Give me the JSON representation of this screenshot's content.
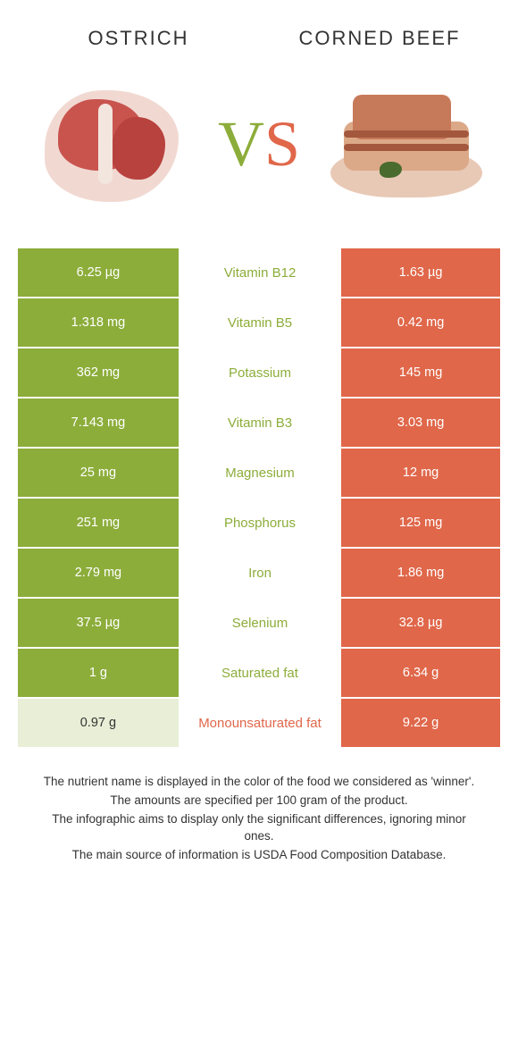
{
  "colors": {
    "green": "#8cad3a",
    "orange": "#e0674a",
    "green_light": "#e9efd7",
    "green_row": "#8cad3a",
    "white": "#ffffff",
    "text": "#333333"
  },
  "header": {
    "left_title": "OSTRICH",
    "right_title": "CORNED BEEF",
    "vs_v": "V",
    "vs_s": "S"
  },
  "table": {
    "rows": [
      {
        "left": "6.25 µg",
        "label": "Vitamin B12",
        "right": "1.63 µg",
        "winner": "left"
      },
      {
        "left": "1.318 mg",
        "label": "Vitamin B5",
        "right": "0.42 mg",
        "winner": "left"
      },
      {
        "left": "362 mg",
        "label": "Potassium",
        "right": "145 mg",
        "winner": "left"
      },
      {
        "left": "7.143 mg",
        "label": "Vitamin B3",
        "right": "3.03 mg",
        "winner": "left"
      },
      {
        "left": "25 mg",
        "label": "Magnesium",
        "right": "12 mg",
        "winner": "left"
      },
      {
        "left": "251 mg",
        "label": "Phosphorus",
        "right": "125 mg",
        "winner": "left"
      },
      {
        "left": "2.79 mg",
        "label": "Iron",
        "right": "1.86 mg",
        "winner": "left"
      },
      {
        "left": "37.5 µg",
        "label": "Selenium",
        "right": "32.8 µg",
        "winner": "left"
      },
      {
        "left": "1 g",
        "label": "Saturated fat",
        "right": "6.34 g",
        "winner": "left"
      },
      {
        "left": "0.97 g",
        "label": "Monounsaturated fat",
        "right": "9.22 g",
        "winner": "right"
      }
    ]
  },
  "footer": {
    "lines": [
      "The nutrient name is displayed in the color of the food we considered as 'winner'.",
      "The amounts are specified per 100 gram of the product.",
      "The infographic aims to display only the significant differences, ignoring minor ones.",
      "The main source of information is USDA Food Composition Database."
    ]
  }
}
